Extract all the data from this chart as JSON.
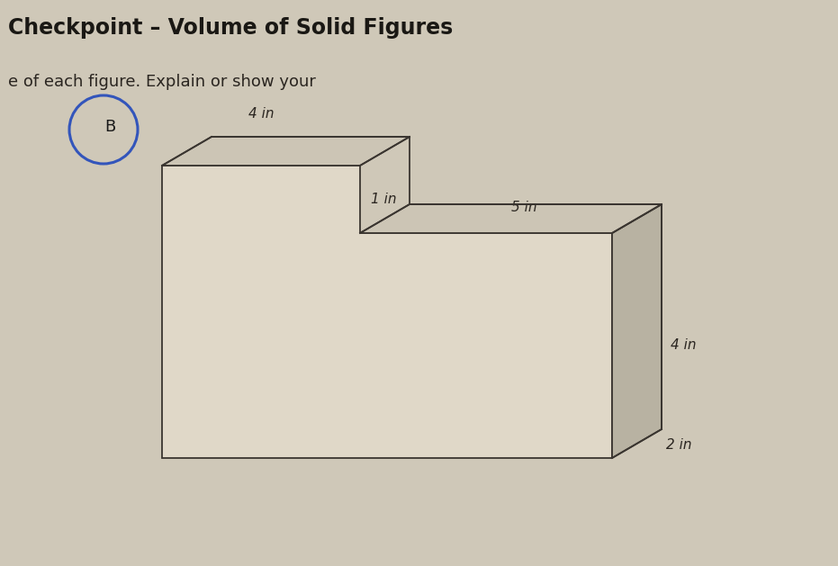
{
  "title": "Checkpoint – Volume of Solid Figures",
  "subtitle": "e of each figure. Explain or show your",
  "label_B": "B",
  "bg_color": "#cfc8b8",
  "line_color": "#3a3530",
  "face_color_front": "#e0d8c8",
  "face_color_top": "#ccc5b5",
  "face_color_right": "#b8b2a2",
  "dim_4in_top": "4 in",
  "dim_1in": "1 in",
  "dim_5in": "5 in",
  "dim_4in_right": "4 in",
  "dim_2in": "2 in",
  "title_fontsize": 17,
  "subtitle_fontsize": 13,
  "circle_color": "#3355bb"
}
